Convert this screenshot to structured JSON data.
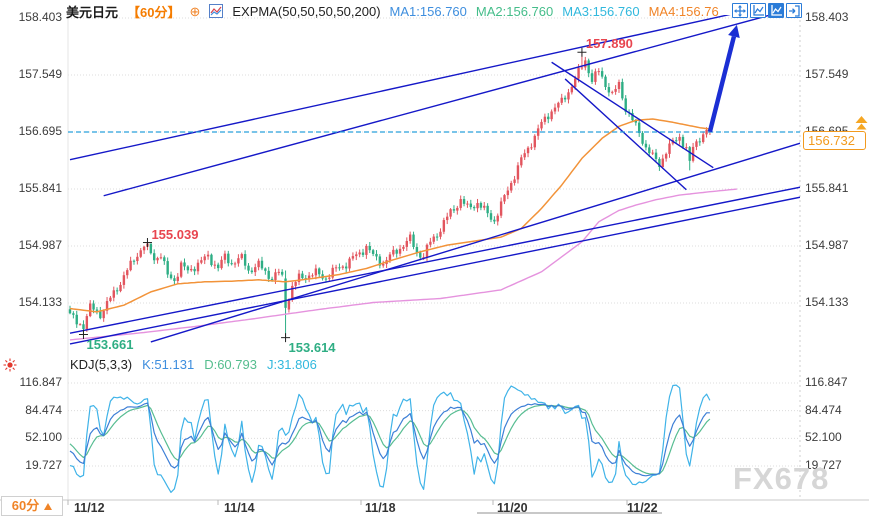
{
  "header": {
    "symbol": "美元日元",
    "timeframe": "【60分】",
    "add_icon": "⊕",
    "indicator_label": "EXPMA(50,50,50,50,200)",
    "ma_values": [
      {
        "label": "MA1:156.760",
        "color": "#3E8EDE"
      },
      {
        "label": "MA2:156.760",
        "color": "#45BD8A"
      },
      {
        "label": "MA3:156.760",
        "color": "#31B8DD"
      },
      {
        "label": "MA4:156.76",
        "color": "#F08428"
      }
    ]
  },
  "toolbar": {
    "buttons": [
      "pan-tool",
      "y-axis-scale-tool",
      "auto-fit-tool",
      "exit-tool"
    ]
  },
  "price_axis": {
    "labels": [
      "158.403",
      "157.549",
      "156.695",
      "155.841",
      "154.987",
      "154.133"
    ],
    "values": [
      158.403,
      157.549,
      156.695,
      155.841,
      154.987,
      154.133
    ]
  },
  "kdj_axis": {
    "labels": [
      "116.847",
      "84.474",
      "52.100",
      "19.727"
    ],
    "values": [
      116.847,
      84.474,
      52.1,
      19.727
    ]
  },
  "x_axis": {
    "dates": [
      "11/12",
      "11/14",
      "11/18",
      "11/20",
      "11/22"
    ]
  },
  "price_tag": {
    "value": "156.732",
    "color": "#F29A1E"
  },
  "kdj_header": {
    "label": "KDJ(5,3,3)",
    "k": "K:51.131",
    "k_color": "#3E8EDE",
    "d": "D:60.793",
    "d_color": "#55BD8E",
    "j": "J:31.806",
    "j_color": "#31B8DD"
  },
  "bottom": {
    "timeframe_badge": "60分",
    "watermark": "FX678"
  },
  "colors": {
    "candle_up": "#E2555E",
    "candle_down": "#2EAE85",
    "trendline": "#1518C8",
    "arrow": "#1B2FD4",
    "ref_dashed": "#29A0DC",
    "grid": "#DCDCDC",
    "ma_fast": "#F29339",
    "ma_slow": "#E593DE",
    "kdj_k": "#3D7FD6",
    "kdj_d": "#57BD92",
    "kdj_j": "#3FB3E8",
    "accent_orange": "#F08428"
  },
  "chart_data": {
    "type": "candlestick",
    "title": "美元日元 60分 EXPMA",
    "x_dates": [
      "11/12",
      "11/14",
      "11/18",
      "11/20",
      "11/22"
    ],
    "panes": [
      {
        "name": "price",
        "ylim": [
          153.45,
          158.55
        ],
        "gridlines": [
          158.403,
          157.549,
          156.695,
          155.841,
          154.987,
          154.133
        ],
        "ref_line": {
          "value": 156.695,
          "style": "dashed"
        },
        "last_price": 156.732,
        "bars": 191,
        "close_anchors": [
          [
            0,
            153.95
          ],
          [
            2,
            153.82
          ],
          [
            4,
            153.78
          ],
          [
            6,
            154.05
          ],
          [
            9,
            153.98
          ],
          [
            12,
            154.22
          ],
          [
            15,
            154.45
          ],
          [
            18,
            154.68
          ],
          [
            20,
            154.85
          ],
          [
            22,
            154.98
          ],
          [
            23,
            154.95
          ],
          [
            25,
            154.82
          ],
          [
            27,
            154.88
          ],
          [
            29,
            154.55
          ],
          [
            31,
            154.48
          ],
          [
            33,
            154.68
          ],
          [
            35,
            154.58
          ],
          [
            38,
            154.72
          ],
          [
            41,
            154.85
          ],
          [
            44,
            154.68
          ],
          [
            46,
            154.82
          ],
          [
            48,
            154.72
          ],
          [
            51,
            154.78
          ],
          [
            53,
            154.62
          ],
          [
            56,
            154.72
          ],
          [
            58,
            154.62
          ],
          [
            60,
            154.52
          ],
          [
            62,
            154.58
          ],
          [
            63,
            154.5
          ],
          [
            64,
            154.06
          ],
          [
            66,
            154.35
          ],
          [
            68,
            154.5
          ],
          [
            70,
            154.55
          ],
          [
            73,
            154.6
          ],
          [
            76,
            154.52
          ],
          [
            79,
            154.62
          ],
          [
            82,
            154.7
          ],
          [
            85,
            154.85
          ],
          [
            88,
            155.0
          ],
          [
            90,
            154.85
          ],
          [
            93,
            154.72
          ],
          [
            96,
            154.85
          ],
          [
            99,
            155.0
          ],
          [
            101,
            155.1
          ],
          [
            103,
            154.92
          ],
          [
            105,
            154.85
          ],
          [
            107,
            155.05
          ],
          [
            110,
            155.22
          ],
          [
            113,
            155.48
          ],
          [
            116,
            155.68
          ],
          [
            118,
            155.58
          ],
          [
            121,
            155.65
          ],
          [
            124,
            155.45
          ],
          [
            126,
            155.35
          ],
          [
            128,
            155.58
          ],
          [
            131,
            155.95
          ],
          [
            134,
            156.3
          ],
          [
            137,
            156.55
          ],
          [
            140,
            156.8
          ],
          [
            143,
            157.0
          ],
          [
            146,
            157.15
          ],
          [
            149,
            157.42
          ],
          [
            151,
            157.6
          ],
          [
            153,
            157.78
          ],
          [
            155,
            157.45
          ],
          [
            157,
            157.58
          ],
          [
            159,
            157.4
          ],
          [
            161,
            157.25
          ],
          [
            163,
            157.42
          ],
          [
            165,
            157.08
          ],
          [
            167,
            156.88
          ],
          [
            169,
            156.68
          ],
          [
            171,
            156.45
          ],
          [
            173,
            156.3
          ],
          [
            175,
            156.2
          ],
          [
            177,
            156.42
          ],
          [
            179,
            156.55
          ],
          [
            181,
            156.65
          ],
          [
            183,
            156.45
          ],
          [
            184,
            156.22
          ],
          [
            185,
            156.45
          ],
          [
            187,
            156.6
          ],
          [
            189,
            156.68
          ],
          [
            190,
            156.732
          ]
        ],
        "overlays": [
          {
            "name": "EXPMA-fast",
            "color": "#F29339",
            "anchors": [
              [
                0,
                154.05
              ],
              [
                8,
                154.0
              ],
              [
                16,
                154.1
              ],
              [
                24,
                154.3
              ],
              [
                32,
                154.42
              ],
              [
                40,
                154.45
              ],
              [
                48,
                154.46
              ],
              [
                56,
                154.48
              ],
              [
                64,
                154.45
              ],
              [
                72,
                154.5
              ],
              [
                80,
                154.56
              ],
              [
                88,
                154.65
              ],
              [
                96,
                154.78
              ],
              [
                104,
                154.9
              ],
              [
                112,
                155.0
              ],
              [
                120,
                155.06
              ],
              [
                128,
                155.12
              ],
              [
                134,
                155.25
              ],
              [
                140,
                155.55
              ],
              [
                146,
                155.9
              ],
              [
                152,
                156.3
              ],
              [
                158,
                156.6
              ],
              [
                163,
                156.78
              ],
              [
                168,
                156.87
              ],
              [
                173,
                156.89
              ],
              [
                178,
                156.85
              ],
              [
                183,
                156.8
              ],
              [
                187,
                156.76
              ],
              [
                190,
                156.74
              ]
            ]
          },
          {
            "name": "EXPMA-200",
            "color": "#E593DE",
            "anchors": [
              [
                0,
                153.58
              ],
              [
                20,
                153.68
              ],
              [
                37,
                153.78
              ],
              [
                55,
                153.9
              ],
              [
                73,
                154.03
              ],
              [
                90,
                154.14
              ],
              [
                110,
                154.2
              ],
              [
                128,
                154.33
              ],
              [
                140,
                154.6
              ],
              [
                148,
                154.9
              ],
              [
                152,
                155.05
              ],
              [
                157,
                155.35
              ],
              [
                163,
                155.52
              ],
              [
                168,
                155.6
              ],
              [
                174,
                155.68
              ],
              [
                181,
                155.75
              ],
              [
                190,
                155.8
              ],
              [
                198,
                155.84
              ]
            ]
          }
        ],
        "key_points": [
          {
            "label": "155.039",
            "bar": 23,
            "price": 155.039,
            "kind": "high",
            "color": "#E8454F"
          },
          {
            "label": "157.890",
            "bar": 152,
            "price": 157.89,
            "kind": "high",
            "color": "#E8454F"
          },
          {
            "label": "153.661",
            "bar": 4,
            "price": 153.661,
            "kind": "low",
            "color": "#2FAE84"
          },
          {
            "label": "153.614",
            "bar": 64,
            "price": 153.614,
            "kind": "low",
            "color": "#2FAE84"
          }
        ],
        "trendlines": [
          {
            "from": [
              0,
              156.28
            ],
            "to": [
              199,
              158.49
            ]
          },
          {
            "from": [
              10,
              155.74
            ],
            "to": [
              211,
              158.49
            ]
          },
          {
            "from": [
              0,
              153.68
            ],
            "to": [
              217,
              155.87
            ]
          },
          {
            "from": [
              0,
              153.52
            ],
            "to": [
              217,
              155.72
            ]
          },
          {
            "from": [
              24,
              153.55
            ],
            "to": [
              217,
              156.53
            ]
          },
          {
            "from": [
              143,
              157.74
            ],
            "to": [
              191,
              156.16
            ]
          },
          {
            "from": [
              147,
              157.49
            ],
            "to": [
              183,
              155.83
            ]
          }
        ],
        "arrow": {
          "from": [
            190,
            156.7
          ],
          "to": [
            198,
            158.3
          ]
        }
      },
      {
        "name": "KDJ",
        "params": "(5,3,3)",
        "ylim": [
          -21,
          128
        ],
        "gridlines": [
          116.847,
          84.474,
          52.1,
          19.727
        ],
        "last": {
          "K": 51.131,
          "D": 60.793,
          "J": 31.806
        }
      }
    ]
  }
}
